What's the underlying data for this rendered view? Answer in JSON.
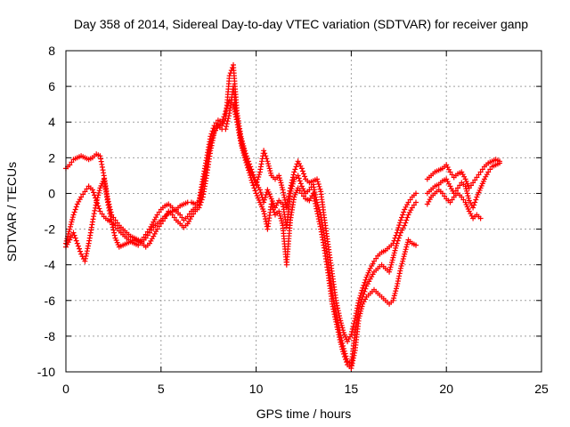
{
  "chart_data": {
    "type": "scatter",
    "title": "Day 358 of 2014, Sidereal Day-to-day VTEC variation (SDTVAR) for receiver ganp",
    "xlabel": "GPS time / hours",
    "ylabel": "SDTVAR / TECUs",
    "xlim": [
      0,
      25
    ],
    "ylim": [
      -10,
      8
    ],
    "x_ticks": [
      0,
      5,
      10,
      15,
      20,
      25
    ],
    "y_ticks": [
      -10,
      -8,
      -6,
      -4,
      -2,
      0,
      2,
      4,
      6,
      8
    ],
    "grid": true,
    "marker": "plus",
    "color": "#ff0000",
    "series": [
      {
        "x": [
          0.0,
          0.2,
          0.4,
          0.6,
          0.8,
          1.0,
          1.2,
          1.4,
          1.6,
          1.8,
          2.0,
          2.2,
          2.4,
          2.6,
          2.8,
          3.0,
          3.2,
          3.4,
          3.6,
          3.8,
          4.0,
          4.2,
          4.4,
          4.6,
          4.8,
          5.0,
          5.2,
          5.4,
          5.6,
          5.8,
          6.0,
          6.2,
          6.4,
          6.6,
          6.8,
          7.0,
          7.2,
          7.4,
          7.6,
          7.8,
          8.0,
          8.2,
          8.4,
          8.6,
          8.8,
          9.0,
          9.2,
          9.4,
          9.6,
          9.8,
          10.0,
          10.2,
          10.4,
          10.6,
          10.8,
          11.0,
          11.2,
          11.4,
          11.6,
          11.8,
          12.0,
          12.2,
          12.4,
          12.6,
          12.8,
          13.0,
          13.2,
          13.4,
          13.6,
          13.8,
          14.0,
          14.2,
          14.4,
          14.6,
          14.8,
          15.0,
          15.2,
          15.4,
          15.6,
          15.8,
          16.0,
          16.2,
          16.4,
          16.6,
          16.8,
          17.0,
          17.2,
          17.4,
          17.6,
          17.8,
          18.0,
          18.2,
          18.4
        ],
        "y": [
          1.4,
          1.6,
          1.9,
          2.0,
          2.1,
          2.0,
          1.9,
          2.0,
          2.2,
          2.1,
          1.0,
          -0.3,
          -1.2,
          -1.5,
          -1.8,
          -2.0,
          -2.2,
          -2.4,
          -2.5,
          -2.6,
          -2.7,
          -2.5,
          -2.2,
          -1.9,
          -1.7,
          -1.5,
          -1.3,
          -1.1,
          -1.0,
          -0.9,
          -0.7,
          -0.6,
          -0.5,
          -0.5,
          -0.6,
          -0.4,
          0.8,
          2.0,
          3.2,
          3.8,
          4.1,
          4.0,
          4.6,
          5.2,
          5.0,
          4.0,
          3.0,
          2.2,
          1.5,
          1.0,
          0.5,
          1.2,
          2.4,
          1.8,
          1.0,
          0.8,
          1.0,
          0.2,
          -0.8,
          0.3,
          1.2,
          1.8,
          1.4,
          0.8,
          0.6,
          0.7,
          0.8,
          0.1,
          -1.5,
          -3.0,
          -4.5,
          -6.0,
          -7.0,
          -7.8,
          -8.3,
          -7.9,
          -7.0,
          -6.0,
          -5.3,
          -4.7,
          -4.2,
          -3.8,
          -3.5,
          -3.3,
          -3.2,
          -3.0,
          -2.8,
          -2.2,
          -1.5,
          -0.9,
          -0.5,
          -0.2,
          0.0
        ]
      },
      {
        "x": [
          0.0,
          0.2,
          0.4,
          0.6,
          0.8,
          1.0,
          1.2,
          1.4,
          1.6,
          1.8,
          2.0,
          2.2,
          2.4,
          2.6,
          2.8,
          3.0,
          3.2,
          3.4,
          3.6,
          3.8,
          4.0,
          4.2,
          4.4,
          4.6,
          4.8,
          5.0,
          5.2,
          5.4,
          5.6,
          5.8,
          6.0,
          6.2,
          6.4,
          6.6,
          6.8,
          7.0,
          7.2,
          7.4,
          7.6,
          7.8,
          8.0,
          8.2,
          8.4,
          8.6,
          8.8,
          9.0,
          9.2,
          9.4,
          9.6,
          9.8,
          10.0,
          10.2,
          10.4,
          10.6,
          10.8,
          11.0,
          11.2,
          11.4,
          11.6,
          11.8,
          12.0,
          12.2,
          12.4,
          12.6,
          12.8,
          13.0,
          13.2,
          13.4,
          13.6,
          13.8,
          14.0,
          14.2,
          14.4,
          14.6,
          14.8,
          15.0,
          15.2,
          15.4,
          15.6,
          15.8,
          16.0,
          16.2,
          16.4,
          16.6,
          16.8,
          17.0,
          17.2,
          17.4,
          17.6,
          17.8,
          18.0,
          18.2,
          18.4
        ],
        "y": [
          -2.8,
          -2.0,
          -1.2,
          -0.6,
          -0.2,
          0.1,
          0.4,
          0.2,
          -0.4,
          -1.0,
          -1.3,
          -1.5,
          -1.6,
          -1.8,
          -2.1,
          -2.3,
          -2.5,
          -2.7,
          -2.8,
          -2.9,
          -2.6,
          -2.3,
          -2.0,
          -1.6,
          -1.2,
          -0.9,
          -0.7,
          -0.6,
          -0.8,
          -1.0,
          -1.2,
          -1.5,
          -1.3,
          -1.0,
          -0.8,
          -0.6,
          0.4,
          1.5,
          2.8,
          3.5,
          3.9,
          3.8,
          4.2,
          6.6,
          7.2,
          4.5,
          3.2,
          2.4,
          1.8,
          1.2,
          0.6,
          0.2,
          -0.5,
          0.2,
          -0.3,
          -0.8,
          -0.4,
          -0.6,
          -1.9,
          0.0,
          0.8,
          1.0,
          0.4,
          0.0,
          0.2,
          0.5,
          -0.5,
          -1.2,
          -2.5,
          -4.0,
          -5.6,
          -6.8,
          -7.8,
          -8.7,
          -9.4,
          -9.6,
          -7.8,
          -6.5,
          -5.8,
          -5.2,
          -4.8,
          -4.4,
          -4.2,
          -4.0,
          -4.2,
          -4.4,
          -3.6,
          -2.8,
          -2.2,
          -1.8,
          -1.2,
          -0.8,
          -0.5
        ]
      },
      {
        "x": [
          0.0,
          0.2,
          0.4,
          0.6,
          0.8,
          1.0,
          1.2,
          1.4,
          1.6,
          1.8,
          2.0,
          2.2,
          2.4,
          2.6,
          2.8,
          3.0,
          3.2,
          3.4,
          3.6,
          3.8,
          4.0,
          4.2,
          4.4,
          4.6,
          4.8,
          5.0,
          5.2,
          5.4,
          5.6,
          5.8,
          6.0,
          6.2,
          6.4,
          6.6,
          6.8,
          7.0,
          7.2,
          7.4,
          7.6,
          7.8,
          8.0,
          8.2,
          8.4,
          8.6,
          8.8,
          9.0,
          9.2,
          9.4,
          9.6,
          9.8,
          10.0,
          10.2,
          10.4,
          10.6,
          10.8,
          11.0,
          11.2,
          11.4,
          11.6,
          11.8,
          12.0,
          12.2,
          12.4,
          12.6,
          12.8,
          13.0,
          13.2,
          13.4,
          13.6,
          13.8,
          14.0,
          14.2,
          14.4,
          14.6,
          14.8,
          15.0,
          15.2,
          15.4,
          15.6,
          15.8,
          16.0,
          16.2,
          16.4,
          16.6,
          16.8,
          17.0,
          17.2,
          17.4,
          17.6,
          17.8,
          18.0,
          18.2,
          18.4
        ],
        "y": [
          -3.0,
          -2.6,
          -2.2,
          -2.8,
          -3.4,
          -3.8,
          -2.8,
          -1.6,
          -0.5,
          0.3,
          0.8,
          -0.5,
          -1.6,
          -2.5,
          -3.0,
          -2.9,
          -2.8,
          -2.7,
          -2.6,
          -2.7,
          -2.8,
          -3.0,
          -2.8,
          -2.4,
          -2.0,
          -1.7,
          -1.4,
          -1.0,
          -1.2,
          -1.5,
          -1.7,
          -1.9,
          -1.7,
          -1.3,
          -1.0,
          -0.8,
          -0.2,
          1.0,
          2.4,
          3.4,
          3.8,
          3.6,
          3.6,
          4.5,
          6.0,
          4.0,
          2.8,
          2.0,
          1.3,
          0.6,
          0.0,
          -0.5,
          -1.0,
          -2.0,
          -0.6,
          -1.2,
          -1.0,
          -1.8,
          -4.0,
          -1.5,
          -0.2,
          0.3,
          0.0,
          -0.3,
          -0.4,
          0.0,
          -1.0,
          -2.0,
          -3.2,
          -4.6,
          -6.2,
          -7.2,
          -8.2,
          -9.0,
          -9.6,
          -9.8,
          -8.8,
          -7.0,
          -6.2,
          -5.8,
          -5.6,
          -5.4,
          -5.6,
          -5.8,
          -6.0,
          -6.2,
          -6.0,
          -5.2,
          -4.2,
          -3.4,
          -2.6,
          -2.8,
          -2.9
        ]
      },
      {
        "x": [
          19.0,
          19.2,
          19.4,
          19.6,
          19.8,
          20.0,
          20.2,
          20.4,
          20.6,
          20.8,
          21.0,
          21.2,
          21.4,
          21.6,
          21.8,
          22.0,
          22.2,
          22.4,
          22.6,
          22.8
        ],
        "y": [
          0.8,
          1.0,
          1.2,
          1.3,
          1.4,
          1.6,
          1.2,
          0.9,
          1.1,
          1.2,
          0.8,
          0.3,
          0.6,
          0.9,
          1.2,
          1.5,
          1.7,
          1.8,
          1.9,
          1.8
        ]
      },
      {
        "x": [
          19.0,
          19.2,
          19.4,
          19.6,
          19.8,
          20.0,
          20.2,
          20.4,
          20.6,
          20.8,
          21.0,
          21.2,
          21.4,
          21.6,
          21.8,
          22.0,
          22.2,
          22.4,
          22.6,
          22.8
        ],
        "y": [
          0.0,
          0.2,
          0.4,
          0.5,
          0.7,
          0.8,
          0.4,
          0.0,
          0.3,
          0.6,
          0.4,
          -0.4,
          -0.8,
          -0.2,
          0.3,
          0.8,
          1.2,
          1.5,
          1.6,
          1.7
        ]
      },
      {
        "x": [
          19.0,
          19.2,
          19.4,
          19.6,
          19.8,
          20.0,
          20.2,
          20.4,
          20.6,
          20.8,
          21.0,
          21.2,
          21.4,
          21.6,
          21.8
        ],
        "y": [
          -0.6,
          -0.2,
          0.0,
          0.2,
          0.0,
          -0.3,
          -0.5,
          -0.2,
          0.0,
          -0.2,
          -0.5,
          -1.0,
          -1.4,
          -1.2,
          -1.4
        ]
      }
    ]
  }
}
